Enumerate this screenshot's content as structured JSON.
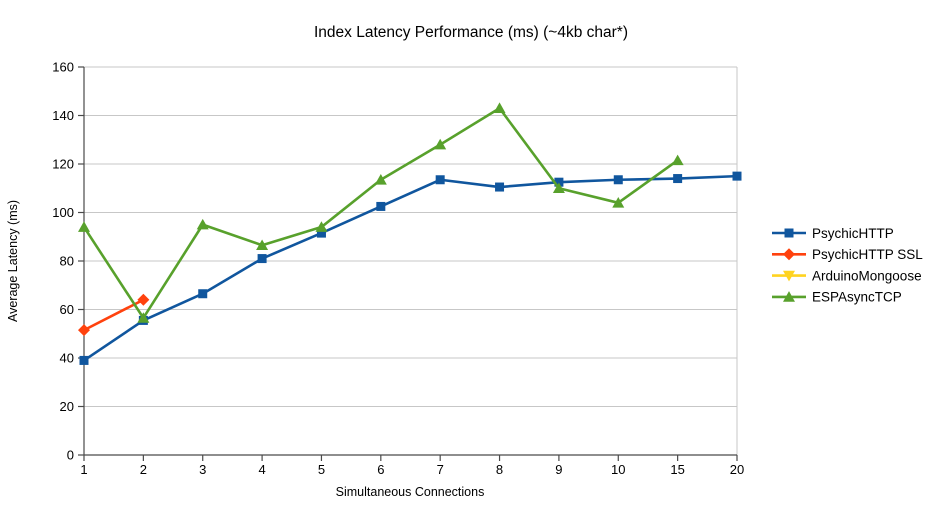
{
  "title": "Index Latency Performance (ms) (~4kb char*)",
  "chart_data": {
    "type": "line",
    "title": "Index Latency Performance (ms) (~4kb char*)",
    "xlabel": "Simultaneous Connections",
    "ylabel": "Average Latency (ms)",
    "categories": [
      "1",
      "2",
      "3",
      "4",
      "5",
      "6",
      "7",
      "8",
      "9",
      "10",
      "15",
      "20"
    ],
    "ylim": [
      0,
      160
    ],
    "ytick_step": 20,
    "grid": "horizontal",
    "legend_position": "right",
    "series": [
      {
        "name": "PsychicHTTP",
        "color": "#10569E",
        "marker": "square",
        "values": [
          39,
          55.5,
          66.5,
          81,
          91.5,
          102.5,
          113.5,
          110.5,
          112.5,
          113.5,
          114,
          115
        ]
      },
      {
        "name": "PsychicHTTP SSL",
        "color": "#FF420E",
        "marker": "diamond",
        "values": [
          51.5,
          64,
          null,
          null,
          null,
          null,
          null,
          null,
          null,
          null,
          null,
          null
        ]
      },
      {
        "name": "ArduinoMongoose",
        "color": "#FFD320",
        "marker": "triangle-down",
        "values": [
          null,
          null,
          null,
          null,
          null,
          null,
          null,
          null,
          null,
          null,
          null,
          null
        ]
      },
      {
        "name": "ESPAsyncTCP",
        "color": "#58A12C",
        "marker": "triangle-up",
        "values": [
          94,
          56.5,
          95,
          86.5,
          94,
          113.5,
          128,
          143,
          110,
          104,
          121.5,
          null
        ]
      }
    ]
  },
  "colors": {
    "grid": "#c7c7c7",
    "axis": "#4a4a4a",
    "background": "#ffffff",
    "text": "#000000"
  }
}
